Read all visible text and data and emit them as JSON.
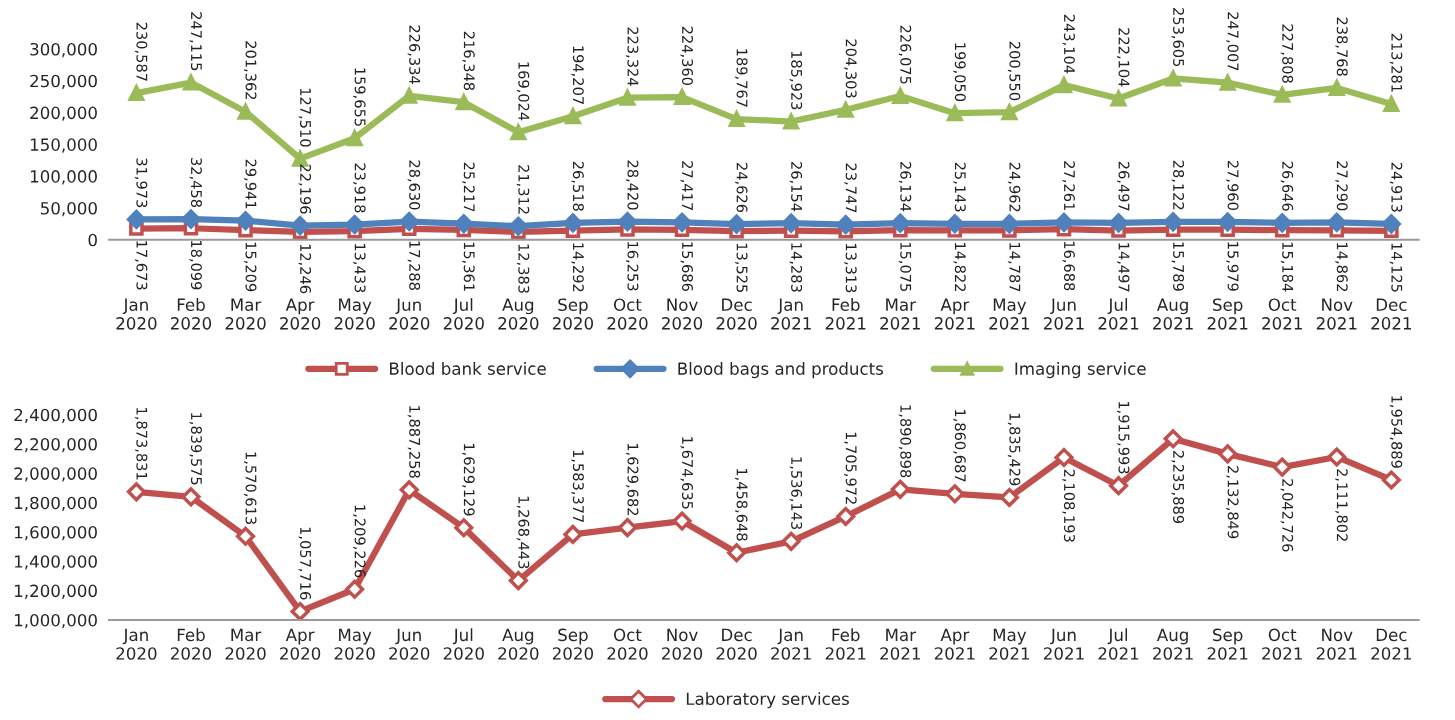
{
  "chart_data": [
    {
      "type": "line",
      "categories": [
        "Jan\n2020",
        "Feb\n2020",
        "Mar\n2020",
        "Apr\n2020",
        "May\n2020",
        "Jun\n2020",
        "Jul\n2020",
        "Aug\n2020",
        "Sep\n2020",
        "Oct\n2020",
        "Nov\n2020",
        "Dec\n2020",
        "Jan\n2021",
        "Feb\n2021",
        "Mar\n2021",
        "Apr\n2021",
        "May\n2021",
        "Jun\n2021",
        "Jul\n2021",
        "Aug\n2021",
        "Sep\n2021",
        "Oct\n2021",
        "Nov\n2021",
        "Dec\n2021"
      ],
      "series": [
        {
          "name": "Blood bank service",
          "color": "#c0504d",
          "marker": "square",
          "values": [
            17673,
            18099,
            15209,
            12246,
            13433,
            17288,
            15361,
            12383,
            14292,
            16253,
            15686,
            13525,
            14283,
            13313,
            15075,
            14822,
            14787,
            16688,
            14497,
            15789,
            15979,
            15184,
            14862,
            14125
          ],
          "value_labels": [
            "17,673",
            "18,099",
            "15,209",
            "12,246",
            "13,433",
            "17,288",
            "15,361",
            "12,383",
            "14,292",
            "16,253",
            "15,686",
            "13,525",
            "14,283",
            "13,313",
            "15,075",
            "14,822",
            "14,787",
            "16,688",
            "14,497",
            "15,789",
            "15,979",
            "15,184",
            "14,862",
            "14,125"
          ]
        },
        {
          "name": "Blood bags and products",
          "color": "#4f81bd",
          "marker": "diamond",
          "values": [
            31973,
            32458,
            29941,
            22196,
            23918,
            28630,
            25217,
            21312,
            26518,
            28420,
            27417,
            24626,
            26154,
            23747,
            26134,
            25143,
            24962,
            27261,
            26497,
            28122,
            27960,
            26646,
            27290,
            24913
          ],
          "value_labels": [
            "31,973",
            "32,458",
            "29,941",
            "22,196",
            "23,918",
            "28,630",
            "25,217",
            "21,312",
            "26,518",
            "28,420",
            "27,417",
            "24,626",
            "26,154",
            "23,747",
            "26,134",
            "25,143",
            "24,962",
            "27,261",
            "26,497",
            "28,122",
            "27,960",
            "26,646",
            "27,290",
            "24,913"
          ]
        },
        {
          "name": "Imaging service",
          "color": "#9bbb59",
          "marker": "triangle",
          "values": [
            230587,
            247115,
            201362,
            127510,
            159655,
            226334,
            216348,
            169024,
            194207,
            223324,
            224360,
            189767,
            185923,
            204303,
            226075,
            199050,
            200550,
            243104,
            222104,
            253605,
            247007,
            227808,
            238768,
            213281
          ],
          "value_labels": [
            "230,587",
            "247,115",
            "201,362",
            "127,510",
            "159,655",
            "226,334",
            "216,348",
            "169,024",
            "194,207",
            "223,324",
            "224,360",
            "189,767",
            "185,923",
            "204,303",
            "226,075",
            "199,050",
            "200,550",
            "243,104",
            "222,104",
            "253,605",
            "247,007",
            "227,808",
            "238,768",
            "213,281"
          ]
        }
      ],
      "ylim": [
        0,
        300000
      ],
      "yticks": [
        {
          "value": 0,
          "label": "0"
        },
        {
          "value": 50000,
          "label": "50,000"
        },
        {
          "value": 100000,
          "label": "100,000"
        },
        {
          "value": 150000,
          "label": "150,000"
        },
        {
          "value": 200000,
          "label": "200,000"
        },
        {
          "value": 250000,
          "label": "250,000"
        },
        {
          "value": 300000,
          "label": "300,000"
        }
      ],
      "data_labels": true,
      "legend": "bottom",
      "line_style": "solid"
    },
    {
      "type": "line",
      "categories": [
        "Jan\n2020",
        "Feb\n2020",
        "Mar\n2020",
        "Apr\n2020",
        "May\n2020",
        "Jun\n2020",
        "Jul\n2020",
        "Aug\n2020",
        "Sep\n2020",
        "Oct\n2020",
        "Nov\n2020",
        "Dec\n2020",
        "Jan\n2021",
        "Feb\n2021",
        "Mar\n2021",
        "Apr\n2021",
        "May\n2021",
        "Jun\n2021",
        "Jul\n2021",
        "Aug\n2021",
        "Sep\n2021",
        "Oct\n2021",
        "Nov\n2021",
        "Dec\n2021"
      ],
      "series": [
        {
          "name": "Laboratory services",
          "color": "#c0504d",
          "marker": "diamond",
          "values": [
            1873831,
            1839575,
            1570613,
            1057716,
            1209226,
            1887258,
            1629129,
            1268443,
            1583377,
            1629682,
            1674635,
            1458648,
            1536143,
            1705972,
            1890898,
            1860687,
            1835429,
            2108193,
            1915993,
            2235889,
            2132849,
            2042726,
            2111802,
            1954889
          ],
          "value_labels": [
            "1,873,831",
            "1,839,575",
            "1,570,613",
            "1,057,716",
            "1,209,226",
            "1,887,258",
            "1,629,129",
            "1,268,443",
            "1,583,377",
            "1,629,682",
            "1,674,635",
            "1,458,648",
            "1,536,143",
            "1,705,972",
            "1,890,898",
            "1,860,687",
            "1,835,429",
            "2,108,193",
            "1,915,993",
            "2,235,889",
            "2,132,849",
            "2,042,726",
            "2,111,802",
            "1,954,889"
          ]
        }
      ],
      "ylim": [
        1000000,
        2400000
      ],
      "yticks": [
        {
          "value": 1000000,
          "label": "1,000,000"
        },
        {
          "value": 1200000,
          "label": "1,200,000"
        },
        {
          "value": 1400000,
          "label": "1,400,000"
        },
        {
          "value": 1600000,
          "label": "1,600,000"
        },
        {
          "value": 1800000,
          "label": "1,800,000"
        },
        {
          "value": 2000000,
          "label": "2,000,000"
        },
        {
          "value": 2200000,
          "label": "2,200,000"
        },
        {
          "value": 2400000,
          "label": "2,400,000"
        }
      ],
      "data_labels": true,
      "legend": "bottom",
      "line_style": "solid"
    }
  ]
}
